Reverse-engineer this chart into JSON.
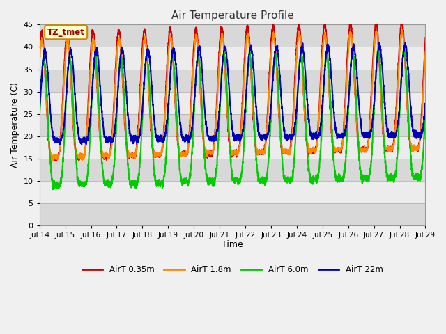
{
  "title": "Air Temperature Profile",
  "ylabel": "Air Temperature (C)",
  "xlabel": "Time",
  "ylim": [
    0,
    45
  ],
  "annotation_label": "TZ_tmet",
  "background_color": "#f0f0f0",
  "plot_bg_color": "#ffffff",
  "band_color_dark": "#d8d8d8",
  "band_color_light": "#ececec",
  "series": [
    {
      "label": "AirT 0.35m",
      "color": "#cc0000",
      "lw": 1.5
    },
    {
      "label": "AirT 1.8m",
      "color": "#ff8800",
      "lw": 1.5
    },
    {
      "label": "AirT 6.0m",
      "color": "#00cc00",
      "lw": 1.5
    },
    {
      "label": "AirT 22m",
      "color": "#0000bb",
      "lw": 1.5
    }
  ],
  "xtick_labels": [
    "Jul 14",
    "Jul 15",
    "Jul 16",
    "Jul 17",
    "Jul 18",
    "Jul 19",
    "Jul 20",
    "Jul 21",
    "Jul 22",
    "Jul 23",
    "Jul 24",
    "Jul 25",
    "Jul 26",
    "Jul 27",
    "Jul 28",
    "Jul 29"
  ],
  "ytick_values": [
    0,
    5,
    10,
    15,
    20,
    25,
    30,
    35,
    40,
    45
  ],
  "n_points": 3000,
  "figsize": [
    6.4,
    4.8
  ],
  "dpi": 100
}
